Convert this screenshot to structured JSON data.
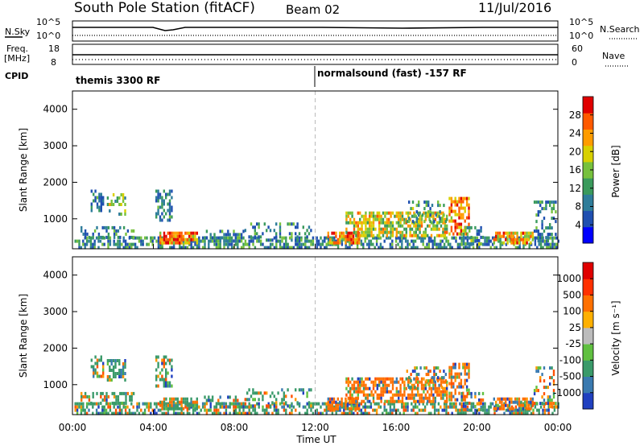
{
  "header": {
    "station": "South Pole Station (fitACF)",
    "beam": "Beam 02",
    "date": "11/Jul/2016"
  },
  "top_panels": {
    "nsky_label": "N.Sky",
    "nsky_ticks": [
      "10^5",
      "10^0"
    ],
    "nsearch_label": "N.Search",
    "nsearch_ticks": [
      "10^5",
      "10^0"
    ],
    "freq_label_1": "Freq.",
    "freq_label_2": "[MHz]",
    "freq_ticks": [
      "18",
      "8"
    ],
    "nave_label": "Nave",
    "nave_ticks": [
      "60",
      "0"
    ],
    "cpid_label": "CPID",
    "cpid_segments": [
      {
        "label": "themis 3300 RF",
        "start_hour": 0
      },
      {
        "label": "normalsound (fast) -157 RF",
        "start_hour": 12
      }
    ]
  },
  "chart_data": [
    {
      "type": "heatmap",
      "name": "power-panel",
      "ylabel": "Slant Range [km]",
      "y_ticks": [
        "4000",
        "3000",
        "2000",
        "1000"
      ],
      "y_tick_values": [
        4000,
        3000,
        2000,
        1000
      ],
      "ylim": [
        180,
        4500
      ],
      "x_tick_labels": [
        "00:00",
        "04:00",
        "08:00",
        "12:00",
        "16:00",
        "20:00",
        "00:00"
      ],
      "x_tick_hours": [
        0,
        4,
        8,
        12,
        16,
        20,
        24
      ],
      "xlim": [
        0,
        24
      ],
      "colorbar_label": "Power [dB]",
      "colorbar_ticks": [
        "28",
        "24",
        "20",
        "16",
        "12",
        "8",
        "4"
      ],
      "colorbar_tick_values": [
        28,
        24,
        20,
        16,
        12,
        8,
        4
      ],
      "colorbar_range": [
        0,
        32
      ],
      "colorbar_colors": [
        "#0000ff",
        "#1f4fb0",
        "#2e7d9a",
        "#3a9a5c",
        "#77c13d",
        "#d8d000",
        "#ff9c00",
        "#ff5a00",
        "#e00000"
      ]
    },
    {
      "type": "heatmap",
      "name": "velocity-panel",
      "ylabel": "Slant Range [km]",
      "y_ticks": [
        "4000",
        "3000",
        "2000",
        "1000"
      ],
      "y_tick_values": [
        4000,
        3000,
        2000,
        1000
      ],
      "ylim": [
        180,
        4500
      ],
      "x_tick_labels": [
        "00:00",
        "04:00",
        "08:00",
        "12:00",
        "16:00",
        "20:00",
        "00:00"
      ],
      "x_tick_hours": [
        0,
        4,
        8,
        12,
        16,
        20,
        24
      ],
      "xlim": [
        0,
        24
      ],
      "xlabel": "Time UT",
      "colorbar_label": "Velocity [m s⁻¹]",
      "colorbar_ticks": [
        "1000",
        "500",
        "100",
        "25",
        "-25",
        "-100",
        "-500",
        "-1000"
      ],
      "colorbar_colors": [
        "#2040c0",
        "#3a7ab0",
        "#3a9a6a",
        "#60c040",
        "#bcbcbc",
        "#ffb000",
        "#ff7000",
        "#ff3000",
        "#e00000"
      ]
    }
  ]
}
